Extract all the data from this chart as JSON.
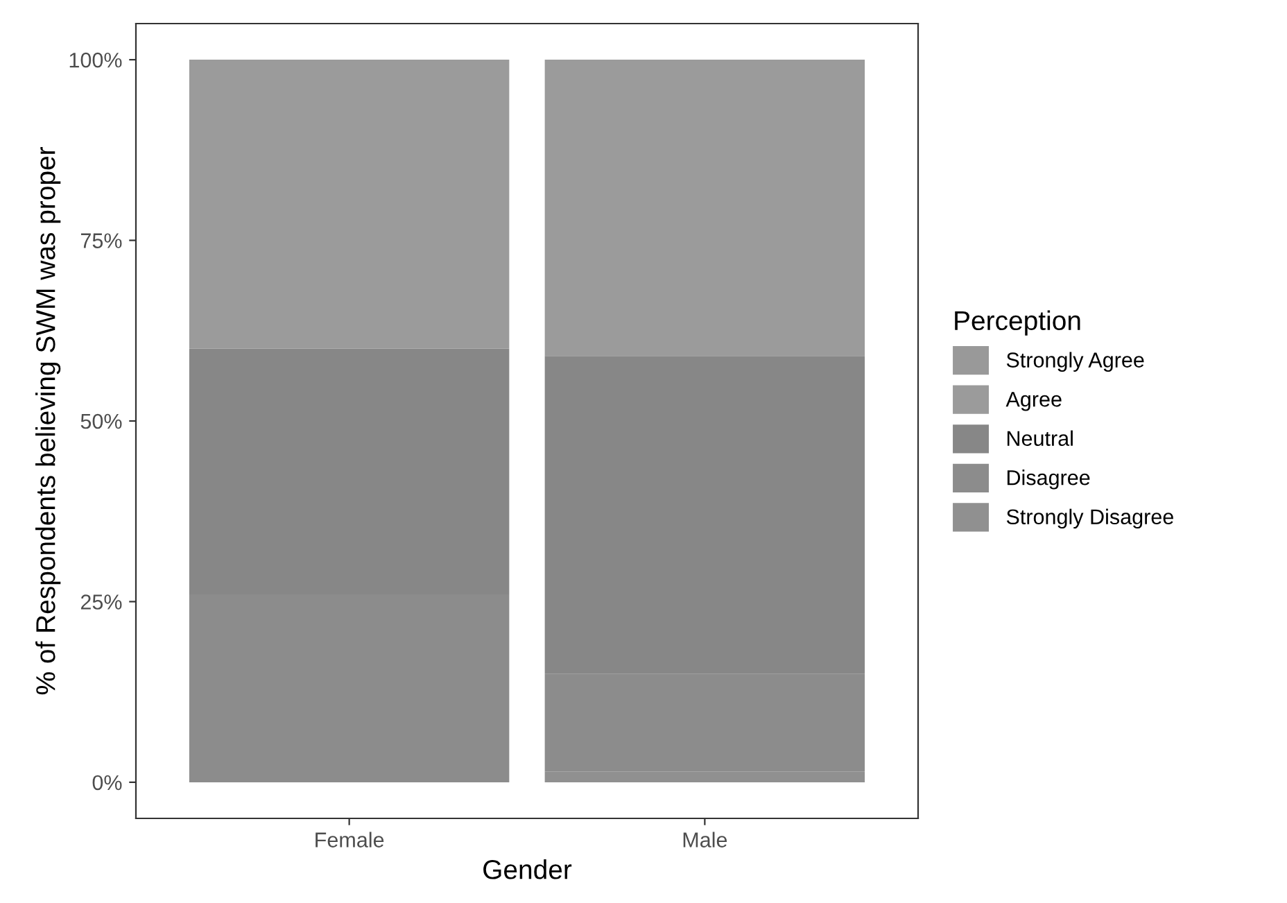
{
  "chart_data": {
    "type": "bar",
    "stacked": true,
    "xlabel": "Gender",
    "ylabel": "% of Respondents believing SWM was proper",
    "legend_title": "Perception",
    "legend": "right",
    "categories": [
      "Female",
      "Male"
    ],
    "series": [
      {
        "name": "Strongly Disagree",
        "color": "#909090",
        "values": [
          0,
          1.5
        ]
      },
      {
        "name": "Disagree",
        "color": "#8c8c8c",
        "values": [
          26,
          13.5
        ]
      },
      {
        "name": "Neutral",
        "color": "#878787",
        "values": [
          34,
          44
        ]
      },
      {
        "name": "Agree",
        "color": "#9b9b9b",
        "values": [
          40,
          41
        ]
      },
      {
        "name": "Strongly Agree",
        "color": "#999999",
        "values": [
          0,
          0
        ]
      }
    ],
    "ylim": [
      -5,
      105
    ],
    "yticks": [
      {
        "value": 0,
        "label": "0%"
      },
      {
        "value": 25,
        "label": "25%"
      },
      {
        "value": 50,
        "label": "50%"
      },
      {
        "value": 75,
        "label": "75%"
      },
      {
        "value": 100,
        "label": "100%"
      }
    ],
    "grid": false
  }
}
